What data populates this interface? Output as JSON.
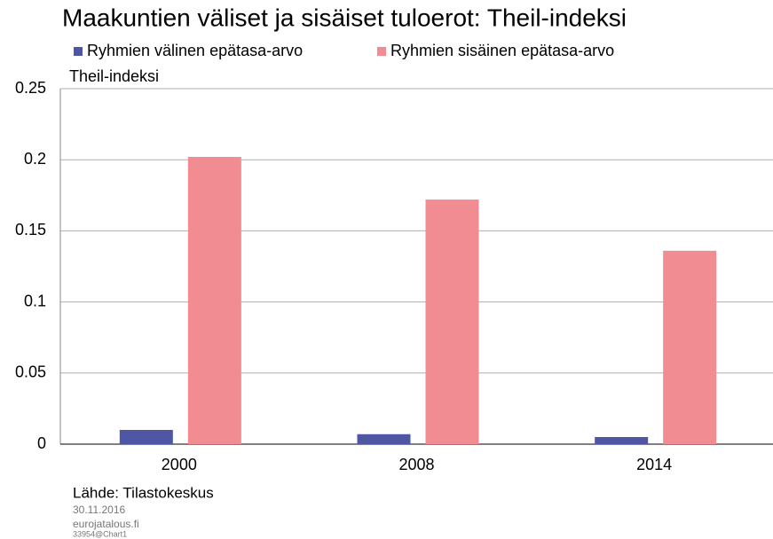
{
  "chart_data": {
    "type": "bar",
    "title": "Maakuntien väliset ja sisäiset tuloerot: Theil-indeksi",
    "ylabel": "Theil-indeksi",
    "categories": [
      "2000",
      "2008",
      "2014"
    ],
    "series": [
      {
        "name": "Ryhmien välinen epätasa-arvo",
        "color": "#4f56a3",
        "values": [
          0.01,
          0.007,
          0.005
        ]
      },
      {
        "name": "Ryhmien sisäinen epätasa-arvo",
        "color": "#f08c92",
        "values": [
          0.202,
          0.172,
          0.136
        ]
      }
    ],
    "ylim": [
      0,
      0.25
    ],
    "yticks": [
      0,
      0.05,
      0.1,
      0.15,
      0.2,
      0.25
    ],
    "grid": true,
    "source": "Lähde: Tilastokeskus",
    "date": "30.11.2016",
    "site": "eurojatalous.fi",
    "chart_id": "33954@Chart1"
  }
}
